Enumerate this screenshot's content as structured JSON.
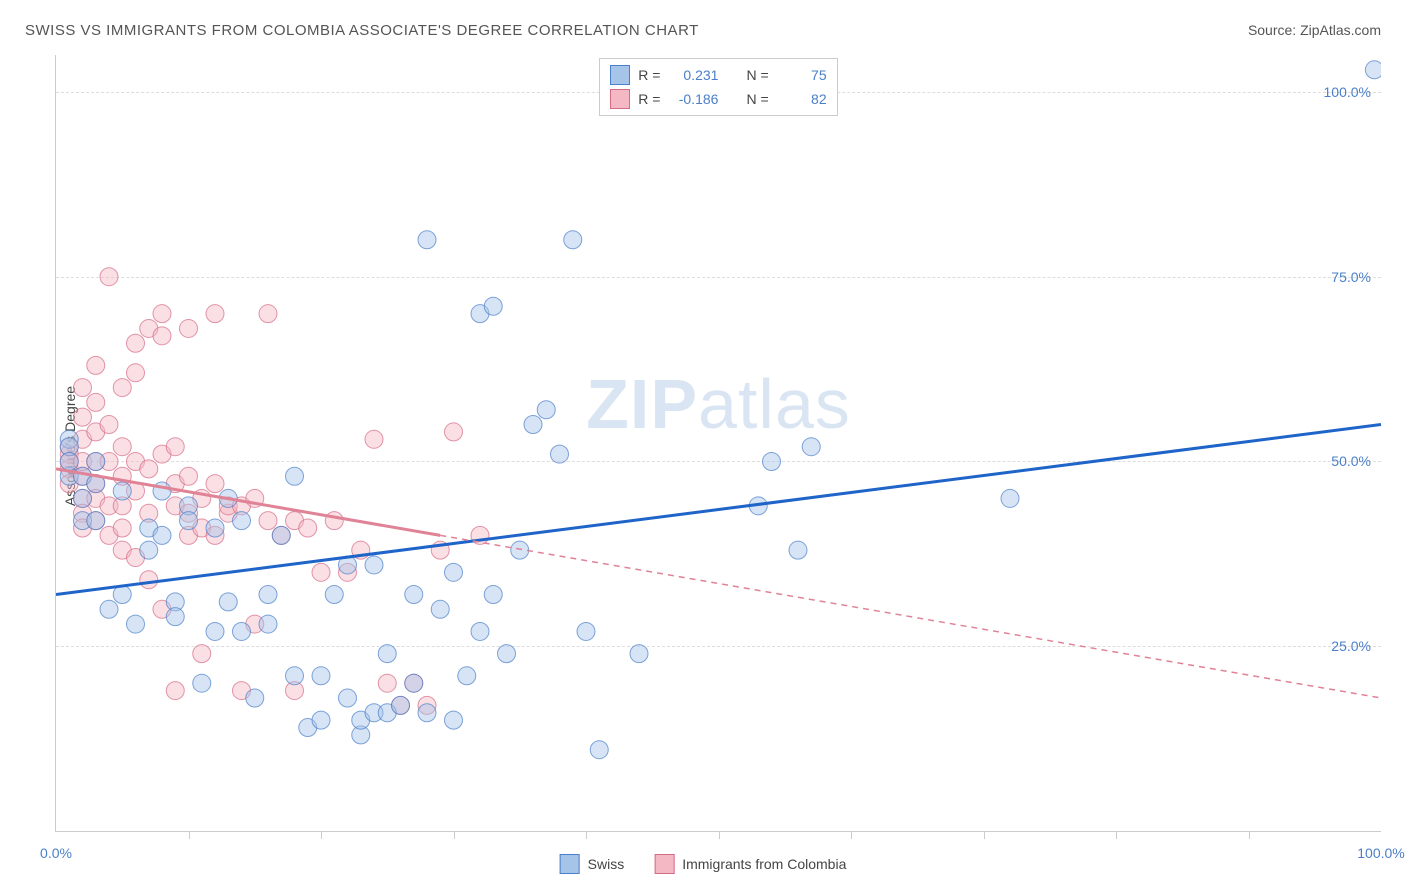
{
  "title": "SWISS VS IMMIGRANTS FROM COLOMBIA ASSOCIATE'S DEGREE CORRELATION CHART",
  "source": "Source: ZipAtlas.com",
  "ylabel": "Associate's Degree",
  "watermark_a": "ZIP",
  "watermark_b": "atlas",
  "chart": {
    "type": "scatter",
    "xlim": [
      0,
      100
    ],
    "ylim": [
      0,
      105
    ],
    "x_ticks": [
      0,
      100
    ],
    "x_tick_labels": [
      "0.0%",
      "100.0%"
    ],
    "x_minor_ticks": [
      10,
      20,
      30,
      40,
      50,
      60,
      70,
      80,
      90
    ],
    "y_gridlines": [
      25,
      50,
      75,
      100
    ],
    "y_tick_labels": [
      "25.0%",
      "50.0%",
      "75.0%",
      "100.0%"
    ],
    "background_color": "#ffffff",
    "grid_color": "#dddddd",
    "marker_radius": 9,
    "marker_opacity": 0.45,
    "series": [
      {
        "name": "Swiss",
        "fill_color": "#a6c4e8",
        "stroke_color": "#4a7fc9",
        "r_value": "0.231",
        "n_value": "75",
        "trend_solid": true,
        "trend_line": {
          "x1": 0,
          "y1": 32,
          "x2": 100,
          "y2": 55,
          "color": "#1f64c8",
          "width": 3
        },
        "points": [
          [
            1,
            48
          ],
          [
            1,
            53
          ],
          [
            1,
            52
          ],
          [
            1,
            50
          ],
          [
            2,
            48
          ],
          [
            2,
            45
          ],
          [
            2,
            42
          ],
          [
            3,
            42
          ],
          [
            3,
            50
          ],
          [
            3,
            47
          ],
          [
            4,
            30
          ],
          [
            5,
            32
          ],
          [
            5,
            46
          ],
          [
            6,
            28
          ],
          [
            7,
            41
          ],
          [
            7,
            38
          ],
          [
            8,
            40
          ],
          [
            8,
            46
          ],
          [
            9,
            31
          ],
          [
            9,
            29
          ],
          [
            10,
            44
          ],
          [
            10,
            42
          ],
          [
            11,
            20
          ],
          [
            12,
            41
          ],
          [
            12,
            27
          ],
          [
            13,
            45
          ],
          [
            13,
            31
          ],
          [
            14,
            42
          ],
          [
            14,
            27
          ],
          [
            15,
            18
          ],
          [
            16,
            32
          ],
          [
            16,
            28
          ],
          [
            17,
            40
          ],
          [
            18,
            21
          ],
          [
            18,
            48
          ],
          [
            19,
            14
          ],
          [
            20,
            21
          ],
          [
            20,
            15
          ],
          [
            21,
            32
          ],
          [
            22,
            36
          ],
          [
            22,
            18
          ],
          [
            23,
            13
          ],
          [
            23,
            15
          ],
          [
            24,
            36
          ],
          [
            24,
            16
          ],
          [
            25,
            24
          ],
          [
            25,
            16
          ],
          [
            26,
            17
          ],
          [
            27,
            20
          ],
          [
            27,
            32
          ],
          [
            28,
            80
          ],
          [
            28,
            16
          ],
          [
            29,
            30
          ],
          [
            30,
            35
          ],
          [
            30,
            15
          ],
          [
            31,
            21
          ],
          [
            32,
            27
          ],
          [
            32,
            70
          ],
          [
            33,
            32
          ],
          [
            33,
            71
          ],
          [
            34,
            24
          ],
          [
            35,
            38
          ],
          [
            36,
            55
          ],
          [
            37,
            57
          ],
          [
            38,
            51
          ],
          [
            39,
            80
          ],
          [
            40,
            27
          ],
          [
            41,
            11
          ],
          [
            44,
            24
          ],
          [
            53,
            44
          ],
          [
            54,
            50
          ],
          [
            56,
            38
          ],
          [
            57,
            52
          ],
          [
            72,
            45
          ],
          [
            99.5,
            103
          ]
        ]
      },
      {
        "name": "Immigrants from Colombia",
        "fill_color": "#f4b8c4",
        "stroke_color": "#d66b84",
        "r_value": "-0.186",
        "n_value": "82",
        "trend_solid": false,
        "trend_line": {
          "x1": 0,
          "y1": 49,
          "x2": 100,
          "y2": 18,
          "color": "#e08396",
          "width": 2
        },
        "trend_solid_segment": {
          "x1": 0,
          "y1": 49,
          "x2": 29,
          "y2": 40
        },
        "points": [
          [
            1,
            49
          ],
          [
            1,
            51
          ],
          [
            1,
            47
          ],
          [
            1,
            52
          ],
          [
            1,
            50
          ],
          [
            2,
            48
          ],
          [
            2,
            50
          ],
          [
            2,
            53
          ],
          [
            2,
            45
          ],
          [
            2,
            56
          ],
          [
            2,
            43
          ],
          [
            2,
            60
          ],
          [
            2,
            41
          ],
          [
            3,
            50
          ],
          [
            3,
            47
          ],
          [
            3,
            54
          ],
          [
            3,
            45
          ],
          [
            3,
            58
          ],
          [
            3,
            42
          ],
          [
            3,
            63
          ],
          [
            4,
            50
          ],
          [
            4,
            40
          ],
          [
            4,
            55
          ],
          [
            4,
            44
          ],
          [
            4,
            75
          ],
          [
            5,
            48
          ],
          [
            5,
            41
          ],
          [
            5,
            52
          ],
          [
            5,
            38
          ],
          [
            5,
            60
          ],
          [
            5,
            44
          ],
          [
            6,
            50
          ],
          [
            6,
            46
          ],
          [
            6,
            62
          ],
          [
            6,
            37
          ],
          [
            6,
            66
          ],
          [
            7,
            49
          ],
          [
            7,
            43
          ],
          [
            7,
            68
          ],
          [
            7,
            34
          ],
          [
            8,
            51
          ],
          [
            8,
            67
          ],
          [
            8,
            30
          ],
          [
            8,
            70
          ],
          [
            9,
            47
          ],
          [
            9,
            52
          ],
          [
            9,
            44
          ],
          [
            9,
            19
          ],
          [
            10,
            48
          ],
          [
            10,
            40
          ],
          [
            10,
            68
          ],
          [
            10,
            43
          ],
          [
            11,
            45
          ],
          [
            11,
            41
          ],
          [
            11,
            24
          ],
          [
            12,
            47
          ],
          [
            12,
            40
          ],
          [
            12,
            70
          ],
          [
            13,
            43
          ],
          [
            13,
            44
          ],
          [
            14,
            44
          ],
          [
            14,
            19
          ],
          [
            15,
            45
          ],
          [
            15,
            28
          ],
          [
            16,
            42
          ],
          [
            16,
            70
          ],
          [
            17,
            40
          ],
          [
            18,
            42
          ],
          [
            18,
            19
          ],
          [
            19,
            41
          ],
          [
            20,
            35
          ],
          [
            21,
            42
          ],
          [
            22,
            35
          ],
          [
            23,
            38
          ],
          [
            24,
            53
          ],
          [
            25,
            20
          ],
          [
            26,
            17
          ],
          [
            27,
            20
          ],
          [
            28,
            17
          ],
          [
            29,
            38
          ],
          [
            30,
            54
          ],
          [
            32,
            40
          ]
        ]
      }
    ],
    "top_legend": {
      "r_label": "R  =",
      "n_label": "N  ="
    },
    "bottom_legend": [
      "Swiss",
      "Immigrants from Colombia"
    ]
  }
}
